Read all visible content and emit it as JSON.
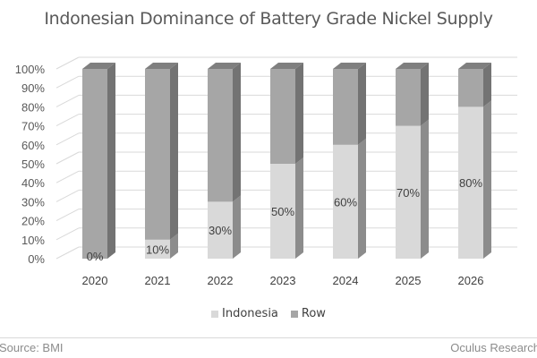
{
  "title": "Indonesian Dominance of Battery Grade Nickel Supply",
  "legend": [
    {
      "label": "Indonesia",
      "color": "#d9d9d9"
    },
    {
      "label": "Row",
      "color": "#a6a6a6"
    }
  ],
  "footer": {
    "source": "Source: BMI",
    "credit": "Oculus Research"
  },
  "y_ticks": [
    "0%",
    "10%",
    "20%",
    "30%",
    "40%",
    "50%",
    "60%",
    "70%",
    "80%",
    "90%",
    "100%"
  ],
  "chart_data": {
    "type": "bar",
    "subtype": "3d-stacked-100-percent",
    "title": "Indonesian Dominance of Battery Grade Nickel Supply",
    "xlabel": "",
    "ylabel": "",
    "ylim": [
      0,
      100
    ],
    "categories": [
      "2020",
      "2021",
      "2022",
      "2023",
      "2024",
      "2025",
      "2026"
    ],
    "series": [
      {
        "name": "Indonesia",
        "values": [
          0,
          10,
          30,
          50,
          60,
          70,
          80
        ],
        "color": "#d9d9d9",
        "data_labels": [
          "0%",
          "10%",
          "30%",
          "50%",
          "60%",
          "70%",
          "80%"
        ]
      },
      {
        "name": "Row",
        "values": [
          100,
          90,
          70,
          50,
          40,
          30,
          20
        ],
        "color": "#a6a6a6"
      }
    ],
    "grid": true,
    "legend_position": "bottom"
  }
}
